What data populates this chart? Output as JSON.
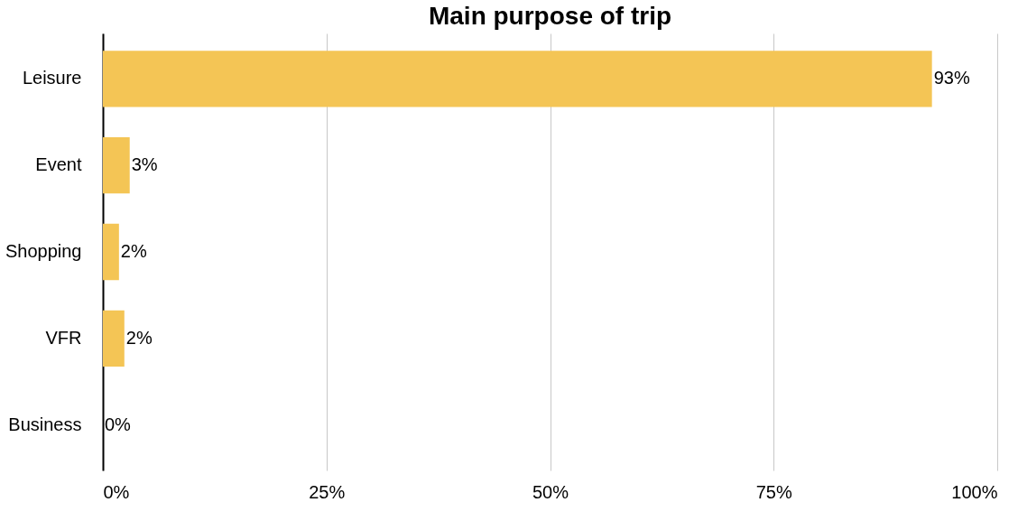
{
  "chart_data": {
    "type": "bar",
    "orientation": "horizontal",
    "title": "Main purpose of trip",
    "categories": [
      "Leisure",
      "Event",
      "Shopping",
      "VFR",
      "Business"
    ],
    "values": [
      92.7,
      3.0,
      1.8,
      2.4,
      0
    ],
    "value_labels": [
      "93%",
      "3%",
      "2%",
      "2%",
      "0%"
    ],
    "color": "#f4c555",
    "xlim": [
      0,
      100
    ],
    "xticks": [
      {
        "value": 0,
        "label": "0%"
      },
      {
        "value": 25,
        "label": "25%"
      },
      {
        "value": 50,
        "label": "50%"
      },
      {
        "value": 75,
        "label": "75%"
      },
      {
        "value": 100,
        "label": "100%"
      }
    ],
    "grid": "x"
  }
}
